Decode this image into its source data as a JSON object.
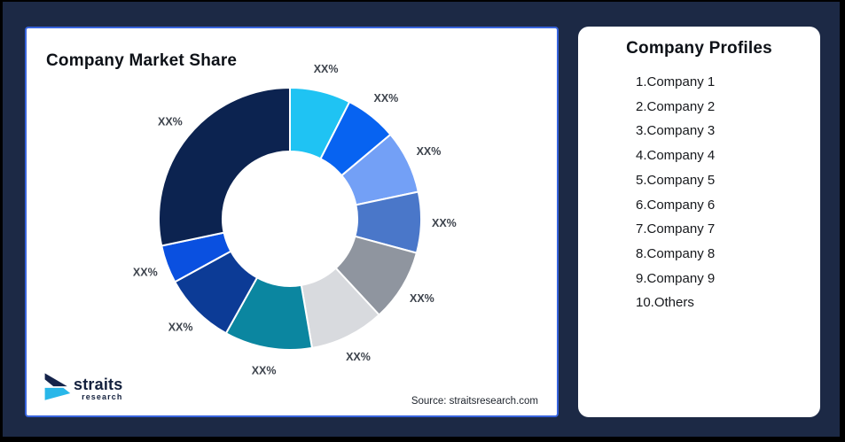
{
  "page": {
    "background_color": "#1c2945",
    "frame_color": "#000000"
  },
  "chart_card": {
    "title": "Company Market Share",
    "source": "Source: straitsresearch.com",
    "border_color": "#3864dd"
  },
  "logo": {
    "brand": "straits",
    "brand_sub": "research",
    "mark_dark": "#14234a",
    "mark_cyan": "#29b7e9"
  },
  "profiles_card": {
    "title": "Company Profiles",
    "items": [
      "1.Company 1",
      "2.Company 2",
      "3.Company 3",
      "4.Company 4",
      "5.Company 5",
      "6.Company 6",
      "7.Company 7",
      "8.Company 8",
      "9.Company 9",
      "10.Others"
    ]
  },
  "chart_data": {
    "type": "pie",
    "variant": "donut",
    "title": "Company Market Share",
    "labels": [
      "Company 1",
      "Company 2",
      "Company 3",
      "Company 4",
      "Company 5",
      "Company 6",
      "Company 7",
      "Company 8",
      "Company 9",
      "Others"
    ],
    "values_pct": [
      7.5,
      6.4,
      7.8,
      7.5,
      8.9,
      9.2,
      10.8,
      8.9,
      4.7,
      28.3
    ],
    "display_labels": [
      "XX%",
      "XX%",
      "XX%",
      "XX%",
      "XX%",
      "XX%",
      "XX%",
      "XX%",
      "XX%",
      "XX%"
    ],
    "colors": [
      "#1fc3f3",
      "#0763f1",
      "#73a0f6",
      "#4a77c9",
      "#8f959f",
      "#d8dade",
      "#0b86a0",
      "#0c3b96",
      "#0a50e0",
      "#0c2350"
    ],
    "start_angle_deg": 0,
    "direction": "clockwise",
    "inner_radius_ratio": 0.514,
    "segment_gap_color": "#ffffff",
    "label_text_color": "#3d434c",
    "legend_position": "none"
  }
}
